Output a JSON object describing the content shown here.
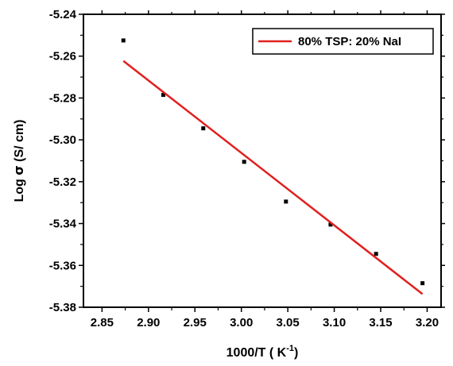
{
  "chart_data": {
    "type": "scatter",
    "xlabel": "1000/T ( K",
    "xlabel_sup": "-1",
    "xlabel_end": ")",
    "ylabel_prefix": "Log ",
    "ylabel_sigma": "σ",
    "ylabel_suffix": "  (S/ cm)",
    "xlim": [
      2.83,
      3.215
    ],
    "ylim": [
      -5.38,
      -5.24
    ],
    "xticks": [
      2.85,
      2.9,
      2.95,
      3.0,
      3.05,
      3.1,
      3.15,
      3.2
    ],
    "xtick_labels": [
      "2.85",
      "2.90",
      "2.95",
      "3.00",
      "3.05",
      "3.10",
      "3.15",
      "3.20"
    ],
    "yticks": [
      -5.24,
      -5.26,
      -5.28,
      -5.3,
      -5.32,
      -5.34,
      -5.36,
      -5.38
    ],
    "ytick_labels": [
      "-5.24",
      "-5.26",
      "-5.28",
      "-5.30",
      "-5.32",
      "-5.34",
      "-5.36",
      "-5.38"
    ],
    "points": {
      "x": [
        2.873,
        2.916,
        2.959,
        3.003,
        3.048,
        3.096,
        3.145,
        3.195
      ],
      "y": [
        -5.2525,
        -5.2785,
        -5.2945,
        -5.3105,
        -5.3295,
        -5.3405,
        -5.3545,
        -5.3685
      ]
    },
    "fit": {
      "name": "80% TSP: 20% NaI",
      "color": "#e0201e",
      "x": [
        2.873,
        3.195
      ],
      "y": [
        -5.2623,
        -5.3737
      ]
    },
    "marker_color": "#000000",
    "legend_position": "top-right",
    "grid": false
  }
}
